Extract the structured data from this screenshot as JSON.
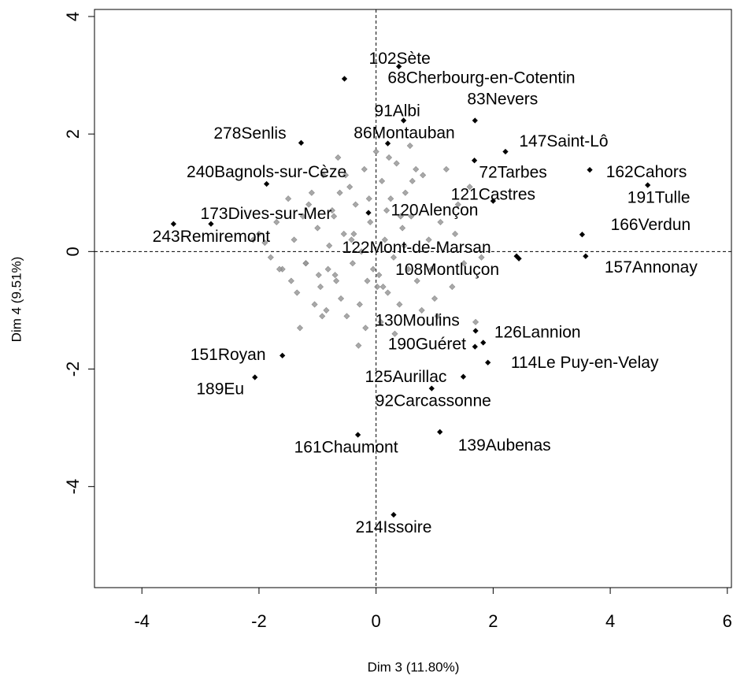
{
  "chart_data": {
    "type": "scatter",
    "xlabel": "Dim 3 (11.80%)",
    "ylabel": "Dim 4 (9.51%)",
    "xlim": [
      -4.81,
      6.07
    ],
    "ylim": [
      -5.72,
      4.12
    ],
    "xticks": [
      -4,
      -2,
      0,
      2,
      4,
      6
    ],
    "yticks": [
      -4,
      -2,
      0,
      2,
      4
    ],
    "series": [
      {
        "color": "#999999",
        "x": [
          -2.0,
          -1.9,
          -1.8,
          -1.7,
          -1.6,
          -1.5,
          -1.45,
          -1.4,
          -1.3,
          -1.25,
          -1.2,
          -1.1,
          -1.05,
          -1.0,
          -0.95,
          -0.9,
          -0.85,
          -0.8,
          -0.75,
          -0.7,
          -0.65,
          -0.6,
          -0.55,
          -0.5,
          -0.45,
          -0.4,
          -0.35,
          -0.3,
          -0.25,
          -0.2,
          -0.15,
          -0.1,
          -0.05,
          0.0,
          0.05,
          0.1,
          0.15,
          0.2,
          0.25,
          0.3,
          0.35,
          0.4,
          0.45,
          0.5,
          0.55,
          0.6,
          0.7,
          0.8,
          0.9,
          1.0,
          1.1,
          1.2,
          1.3,
          1.4,
          1.5,
          1.6,
          1.7,
          1.8,
          -1.35,
          -1.15,
          -0.98,
          -0.72,
          -0.62,
          -0.42,
          -0.28,
          -0.12,
          0.08,
          0.18,
          0.32,
          0.48,
          0.62,
          0.78,
          -0.82,
          -0.52,
          -0.18,
          0.22,
          0.42,
          1.05,
          1.35,
          -2.1,
          -1.65,
          -0.92,
          -0.38,
          0.12,
          0.58,
          0.95,
          -1.2,
          -0.68,
          0.02,
          0.68
        ],
        "y": [
          0.3,
          0.15,
          -0.1,
          0.5,
          -0.3,
          0.9,
          -0.5,
          0.2,
          -1.3,
          0.6,
          -0.2,
          1.0,
          -0.9,
          0.4,
          -0.6,
          1.3,
          -1.0,
          0.1,
          0.7,
          -0.4,
          1.6,
          -0.8,
          0.3,
          -1.1,
          1.1,
          -0.2,
          0.8,
          -1.6,
          0.0,
          1.4,
          -0.5,
          0.5,
          -0.3,
          1.7,
          -0.4,
          1.2,
          0.2,
          -0.7,
          0.9,
          -0.1,
          1.5,
          -0.9,
          0.4,
          1.0,
          -0.3,
          0.6,
          -0.5,
          1.3,
          0.2,
          -0.8,
          0.5,
          1.4,
          -0.6,
          0.8,
          -0.2,
          1.1,
          -1.2,
          -0.1,
          -0.7,
          0.8,
          -0.4,
          0.6,
          1.0,
          0.2,
          -0.9,
          0.9,
          -1.2,
          0.7,
          -1.4,
          0.1,
          1.2,
          -1.0,
          -0.3,
          1.3,
          -1.3,
          1.6,
          0.6,
          -1.1,
          0.3,
          0.2,
          -0.3,
          -1.1,
          0.3,
          -0.6,
          1.8,
          -0.3,
          -0.2,
          -0.5,
          -0.6,
          1.4
        ]
      },
      {
        "color": "#000000",
        "labels": [
          "102Sète",
          "68Cherbourg-en-Cotentin",
          "91Albi",
          "83Nevers",
          "86Montauban",
          "278Senlis",
          "147Saint-Lô",
          "72Tarbes",
          "162Cahors",
          "240Bagnols-sur-Cèze",
          "191Tulle",
          "121Castres",
          "120Alençon",
          "173Dives-sur-Mer",
          "243Remiremont",
          "166Verdun",
          "122Mont-de-Marsan",
          "108Montluçon",
          "157Annonay",
          "130Moulins",
          "126Lannion",
          "190Guéret",
          "114Le Puy-en-Velay",
          "151Royan",
          "189Eu",
          "125Aurillac",
          "92Carcassonne",
          "161Chaumont",
          "139Aubenas",
          "214Issoire"
        ],
        "x": [
          0.39,
          -0.54,
          0.47,
          1.69,
          0.2,
          -1.28,
          2.21,
          1.68,
          3.65,
          -1.87,
          4.64,
          2.0,
          -0.13,
          -2.82,
          -3.46,
          3.52,
          2.44,
          2.4,
          3.58,
          1.7,
          1.83,
          1.69,
          1.91,
          -1.6,
          -2.07,
          1.49,
          0.95,
          -0.31,
          1.09,
          0.3
        ],
        "y": [
          3.15,
          2.94,
          2.23,
          2.23,
          1.84,
          1.85,
          1.7,
          1.55,
          1.39,
          1.15,
          1.13,
          0.86,
          0.66,
          0.47,
          0.47,
          0.29,
          -0.12,
          -0.08,
          -0.08,
          -1.35,
          -1.55,
          -1.62,
          -1.89,
          -1.77,
          -2.14,
          -2.13,
          -2.33,
          -3.12,
          -3.07,
          -4.48
        ]
      }
    ]
  }
}
